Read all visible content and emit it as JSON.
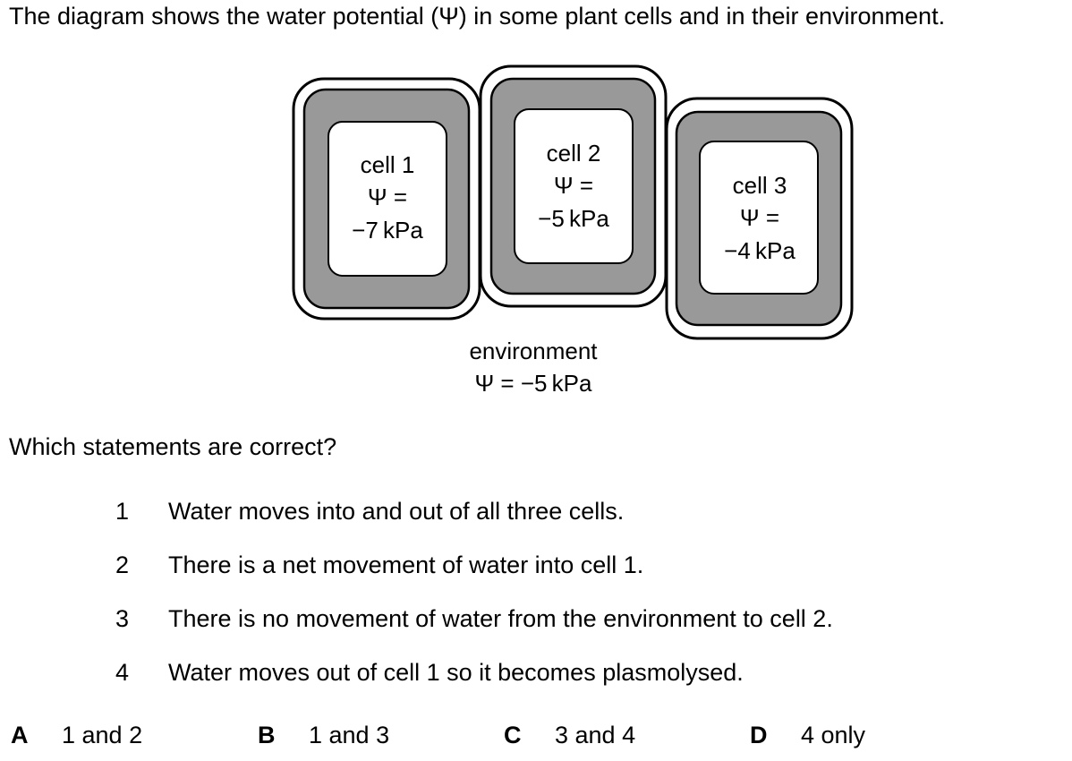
{
  "intro": "The diagram shows the water potential (Ψ) in some plant cells and in their environment.",
  "cells": [
    {
      "name": "cell 1",
      "psi_label": "Ψ =",
      "value": "−7 kPa"
    },
    {
      "name": "cell 2",
      "psi_label": "Ψ =",
      "value": "−5 kPa"
    },
    {
      "name": "cell 3",
      "psi_label": "Ψ =",
      "value": "−4 kPa"
    }
  ],
  "environment": {
    "label": "environment",
    "value": "Ψ = −5 kPa"
  },
  "question": "Which statements are correct?",
  "statements": [
    {
      "num": "1",
      "text": "Water moves into and out of all three cells."
    },
    {
      "num": "2",
      "text": "There is a net movement of water into cell 1."
    },
    {
      "num": "3",
      "text": "There is no movement of water from the environment to cell 2."
    },
    {
      "num": "4",
      "text": "Water moves out of cell 1 so it becomes plasmolysed."
    }
  ],
  "options": [
    {
      "letter": "A",
      "text": "1 and 2"
    },
    {
      "letter": "B",
      "text": "1 and 3"
    },
    {
      "letter": "C",
      "text": "3 and 4"
    },
    {
      "letter": "D",
      "text": "4 only"
    }
  ]
}
